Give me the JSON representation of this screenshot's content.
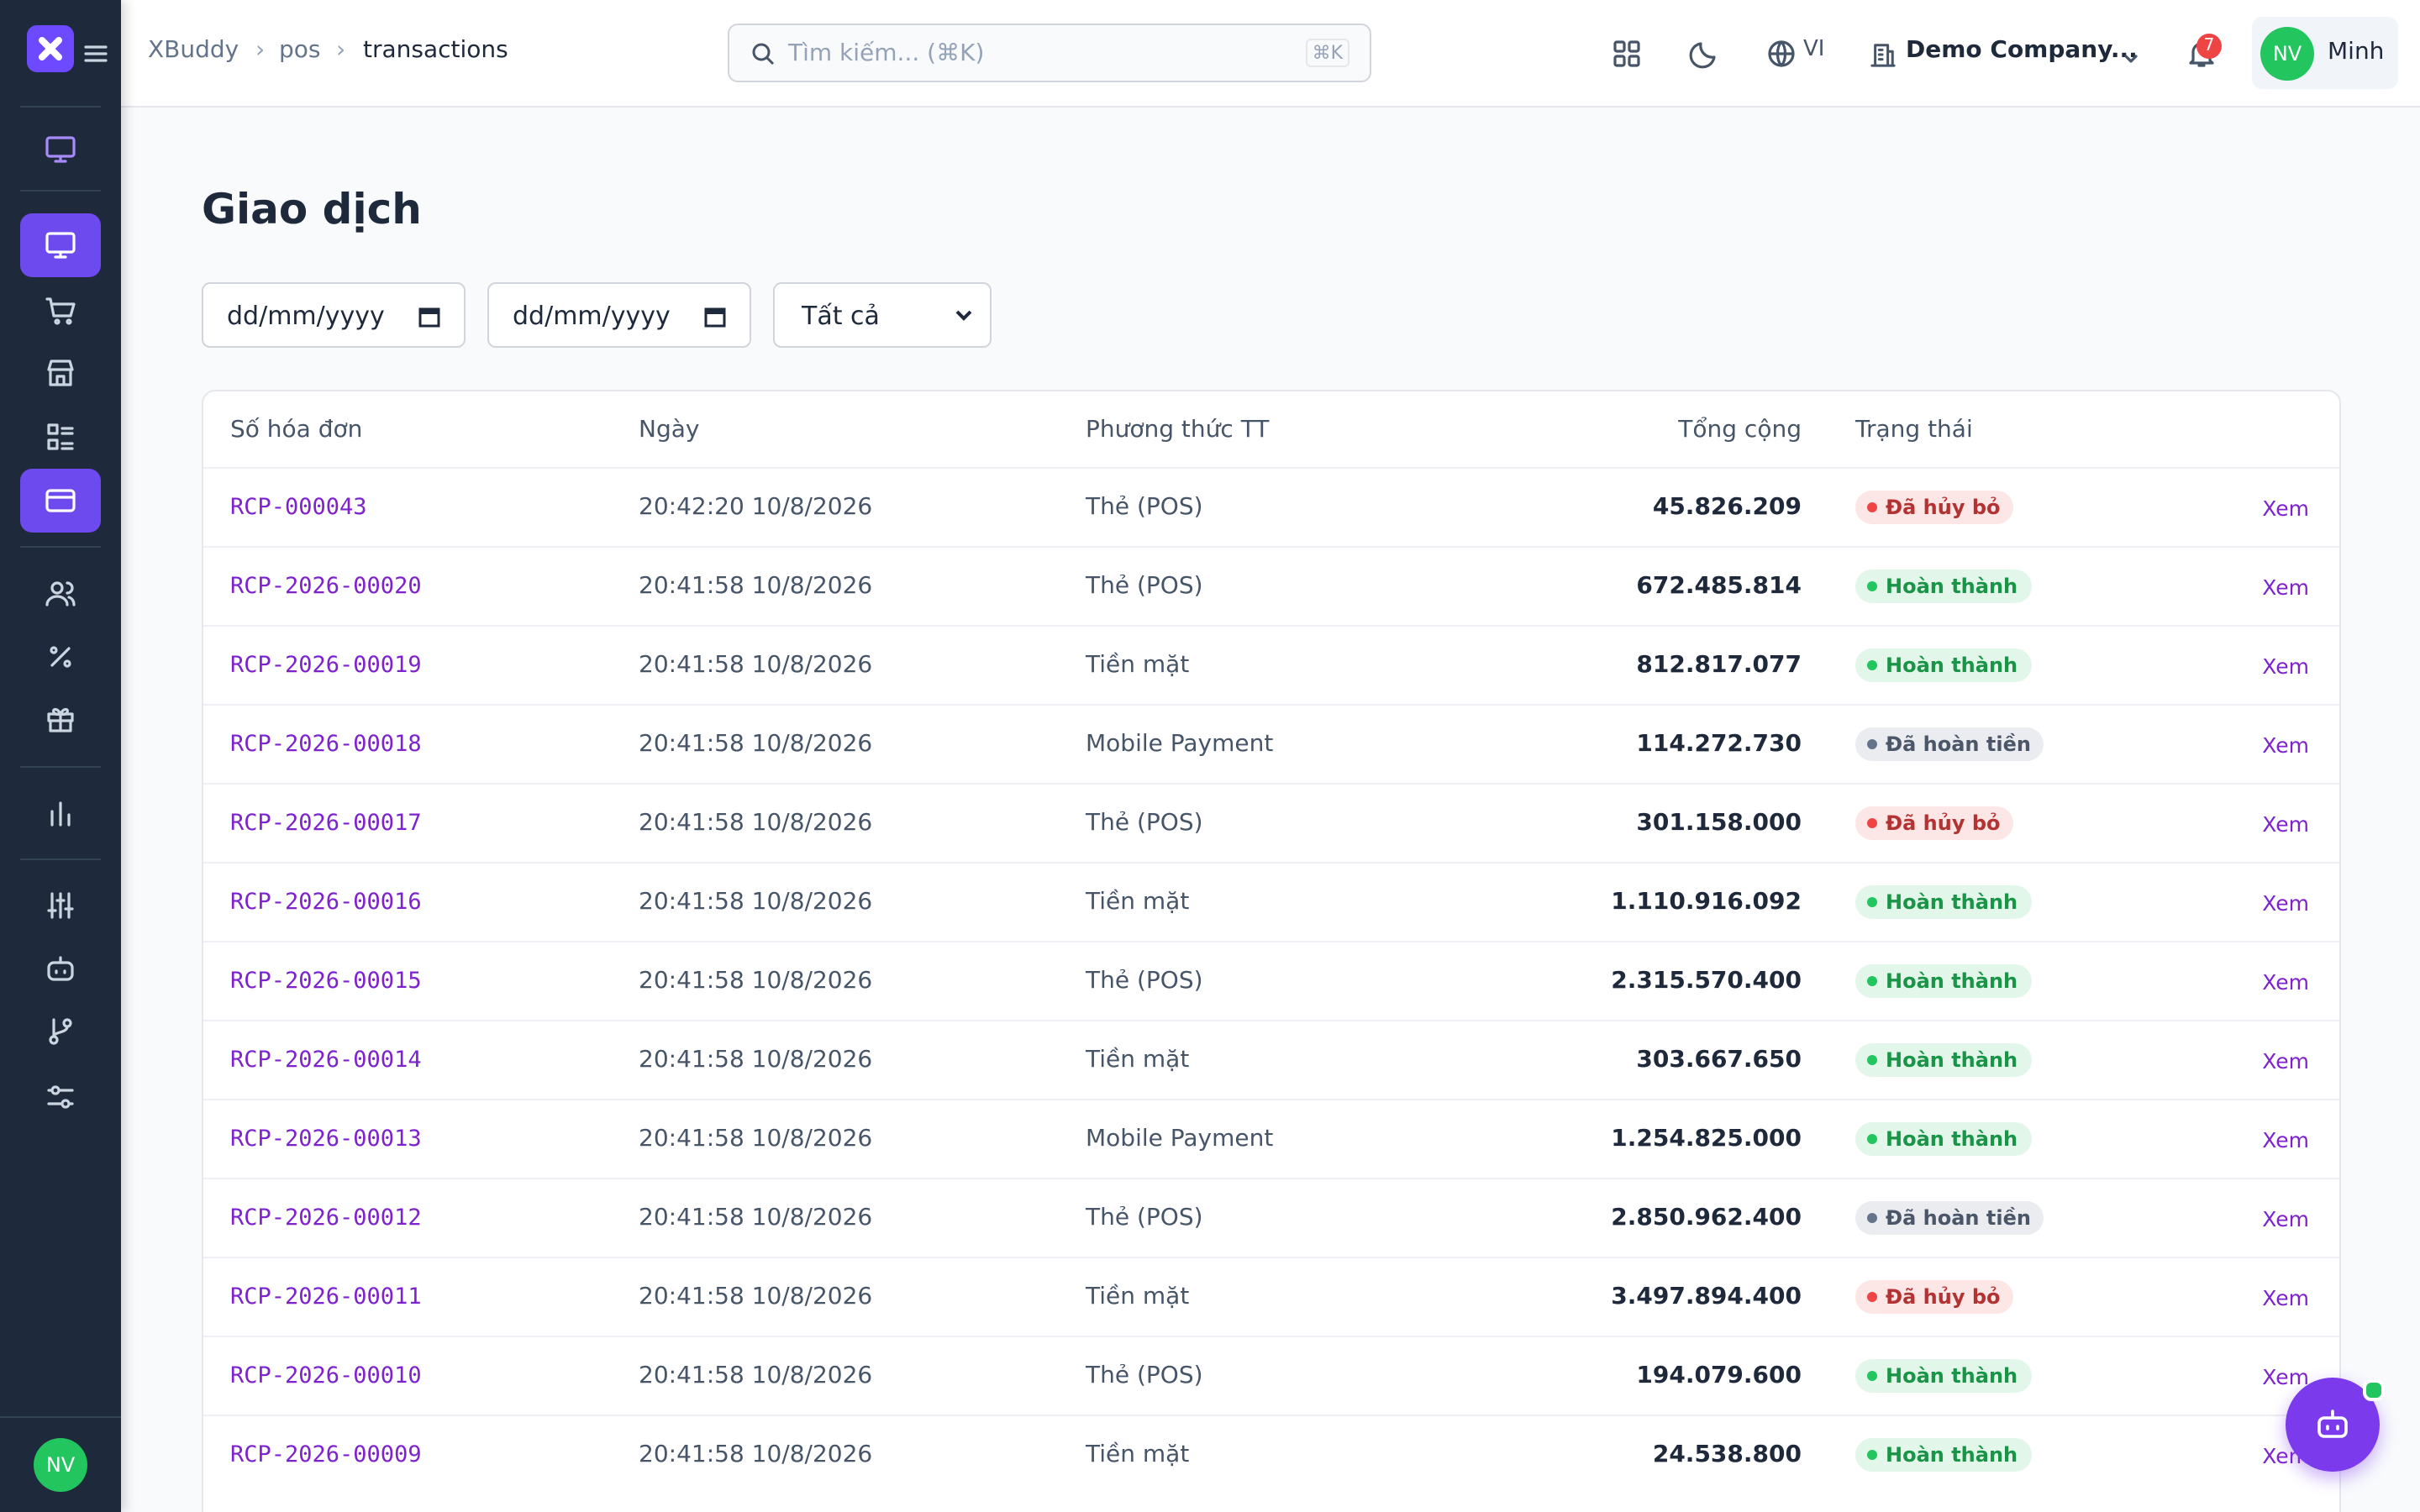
{
  "sidebar": {
    "avatar": "NV"
  },
  "header": {
    "breadcrumb": [
      "XBuddy",
      "pos",
      "transactions"
    ],
    "search_placeholder": "Tìm kiếm... (⌘K)",
    "search_shortcut": "⌘K",
    "language": "VI",
    "company": "Demo Company...",
    "notifications": "7",
    "avatar": "NV",
    "user": "Minh"
  },
  "page": {
    "title": "Giao dịch",
    "filters": {
      "date_from": "dd/mm/yyyy",
      "date_to": "dd/mm/yyyy",
      "status": "Tất cả"
    }
  },
  "table": {
    "columns": [
      "Số hóa đơn",
      "Ngày",
      "Phương thức TT",
      "Tổng cộng",
      "Trạng thái"
    ],
    "action": "Xem",
    "rows": [
      {
        "id": "RCP-000043",
        "date": "20:42:20 10/8/2026",
        "method": "Thẻ (POS)",
        "total": "45.826.209",
        "status": "Đã hủy bỏ",
        "status_color": "#ef4444"
      },
      {
        "id": "RCP-2026-00020",
        "date": "20:41:58 10/8/2026",
        "method": "Thẻ (POS)",
        "total": "672.485.814",
        "status": "Hoàn thành",
        "status_color": "#22c55e"
      },
      {
        "id": "RCP-2026-00019",
        "date": "20:41:58 10/8/2026",
        "method": "Tiền mặt",
        "total": "812.817.077",
        "status": "Hoàn thành",
        "status_color": "#22c55e"
      },
      {
        "id": "RCP-2026-00018",
        "date": "20:41:58 10/8/2026",
        "method": "Mobile Payment",
        "total": "114.272.730",
        "status": "Đã hoàn tiền",
        "status_color": "#64748b"
      },
      {
        "id": "RCP-2026-00017",
        "date": "20:41:58 10/8/2026",
        "method": "Thẻ (POS)",
        "total": "301.158.000",
        "status": "Đã hủy bỏ",
        "status_color": "#ef4444"
      },
      {
        "id": "RCP-2026-00016",
        "date": "20:41:58 10/8/2026",
        "method": "Tiền mặt",
        "total": "1.110.916.092",
        "status": "Hoàn thành",
        "status_color": "#22c55e"
      },
      {
        "id": "RCP-2026-00015",
        "date": "20:41:58 10/8/2026",
        "method": "Thẻ (POS)",
        "total": "2.315.570.400",
        "status": "Hoàn thành",
        "status_color": "#22c55e"
      },
      {
        "id": "RCP-2026-00014",
        "date": "20:41:58 10/8/2026",
        "method": "Tiền mặt",
        "total": "303.667.650",
        "status": "Hoàn thành",
        "status_color": "#22c55e"
      },
      {
        "id": "RCP-2026-00013",
        "date": "20:41:58 10/8/2026",
        "method": "Mobile Payment",
        "total": "1.254.825.000",
        "status": "Hoàn thành",
        "status_color": "#22c55e"
      },
      {
        "id": "RCP-2026-00012",
        "date": "20:41:58 10/8/2026",
        "method": "Thẻ (POS)",
        "total": "2.850.962.400",
        "status": "Đã hoàn tiền",
        "status_color": "#64748b"
      },
      {
        "id": "RCP-2026-00011",
        "date": "20:41:58 10/8/2026",
        "method": "Tiền mặt",
        "total": "3.497.894.400",
        "status": "Đã hủy bỏ",
        "status_color": "#ef4444"
      },
      {
        "id": "RCP-2026-00010",
        "date": "20:41:58 10/8/2026",
        "method": "Thẻ (POS)",
        "total": "194.079.600",
        "status": "Hoàn thành",
        "status_color": "#22c55e"
      },
      {
        "id": "RCP-2026-00009",
        "date": "20:41:58 10/8/2026",
        "method": "Tiền mặt",
        "total": "24.538.800",
        "status": "Hoàn thành",
        "status_color": "#22c55e"
      }
    ]
  }
}
